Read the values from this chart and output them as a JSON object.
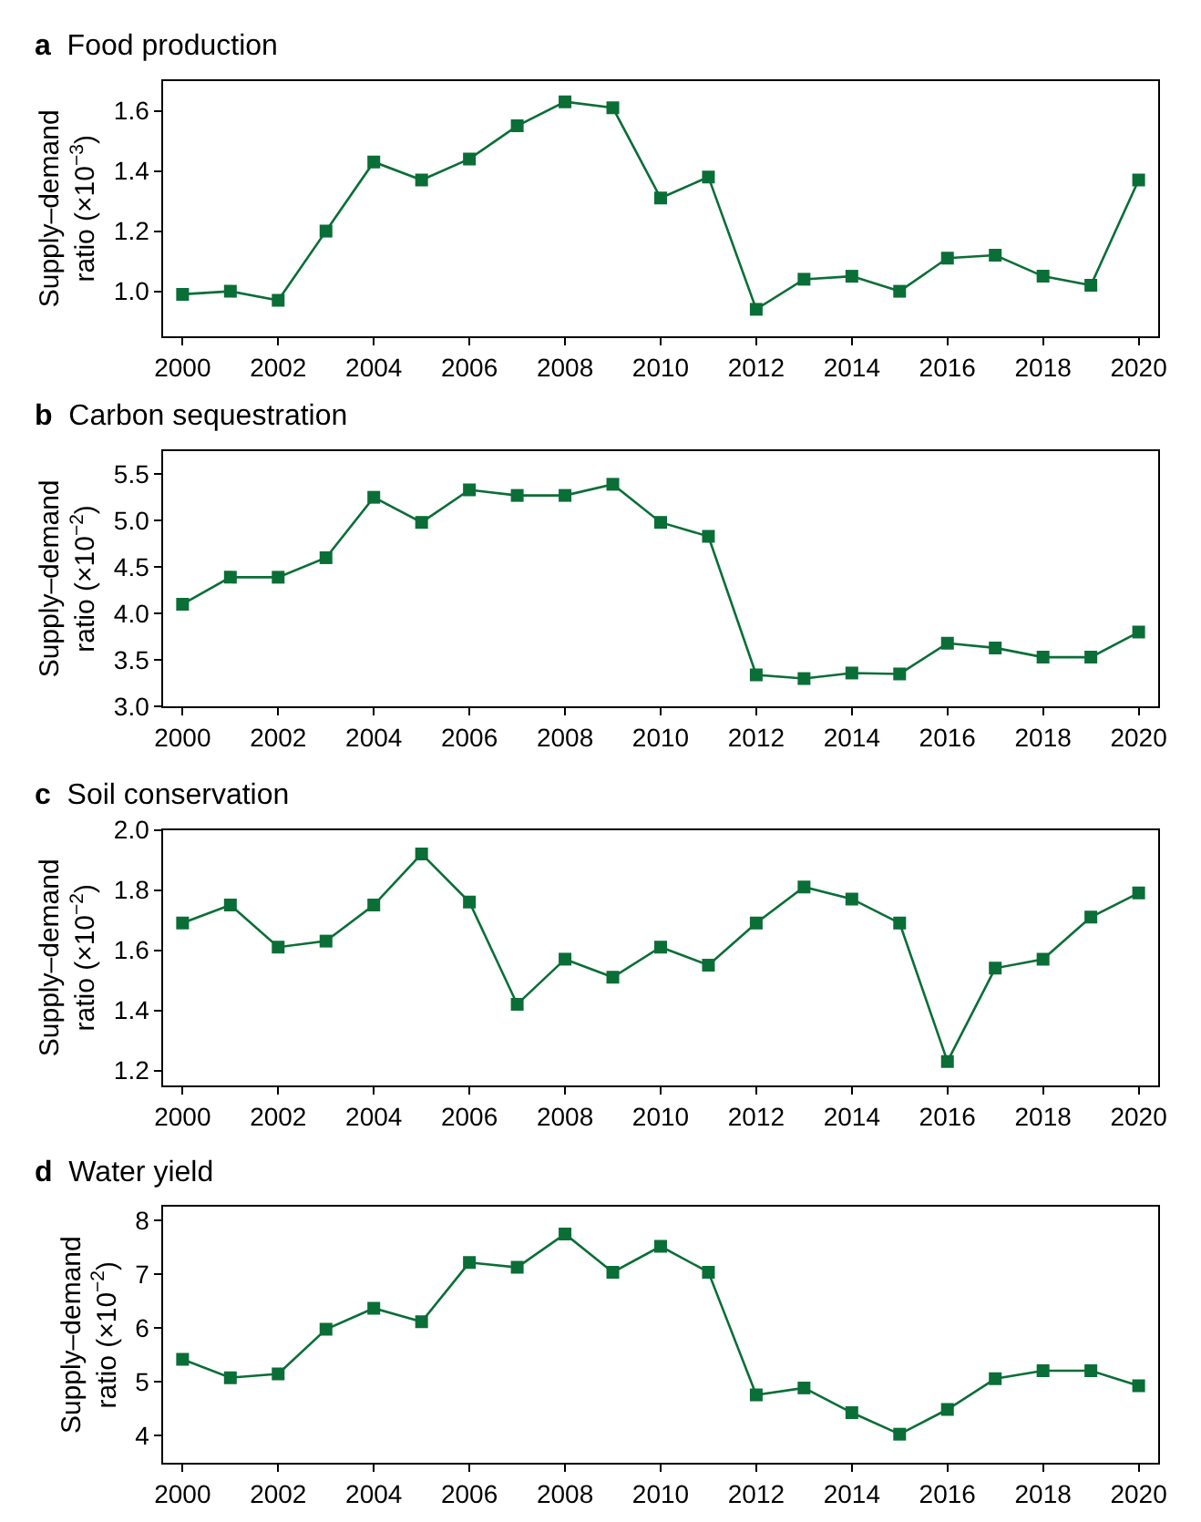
{
  "chart_data": [
    {
      "type": "line",
      "title": "a Food production",
      "ylabel": "Supply–demand\nratio (×10$^{−3}$)",
      "x": [
        2000,
        2001,
        2002,
        2003,
        2004,
        2005,
        2006,
        2007,
        2008,
        2009,
        2010,
        2011,
        2012,
        2013,
        2014,
        2015,
        2016,
        2017,
        2018,
        2019,
        2020
      ],
      "series": [
        {
          "color": "#0a6e37",
          "values": [
            0.99,
            1.0,
            0.97,
            1.2,
            1.43,
            1.37,
            1.44,
            1.55,
            1.63,
            1.61,
            1.31,
            1.38,
            0.94,
            1.04,
            1.05,
            1.0,
            1.11,
            1.12,
            1.05,
            1.02,
            1.37
          ]
        }
      ],
      "xlim": [
        1999.6,
        2020.4
      ],
      "xticks": [
        2000,
        2002,
        2004,
        2006,
        2008,
        2010,
        2012,
        2014,
        2016,
        2018,
        2020
      ],
      "ylim": [
        0.85,
        1.7
      ],
      "yticks": [
        {
          "value": 1.0,
          "label": "1.0"
        },
        1.2,
        1.4,
        1.6
      ],
      "marker": "square",
      "line_style": "solid"
    },
    {
      "type": "line",
      "title": "b Carbon sequestration",
      "ylabel": "Supply–demand\nratio (×10$^{−2}$)",
      "x": [
        2000,
        2001,
        2002,
        2003,
        2004,
        2005,
        2006,
        2007,
        2008,
        2009,
        2010,
        2011,
        2012,
        2013,
        2014,
        2015,
        2016,
        2017,
        2018,
        2019,
        2020
      ],
      "series": [
        {
          "color": "#0a6e37",
          "values": [
            4.1,
            4.39,
            4.39,
            4.6,
            5.25,
            4.98,
            5.33,
            5.27,
            5.27,
            5.39,
            4.98,
            4.83,
            3.34,
            3.3,
            3.36,
            3.35,
            3.68,
            3.63,
            3.53,
            3.53,
            3.8
          ]
        }
      ],
      "xlim": [
        1999.6,
        2020.4
      ],
      "xticks": [
        2000,
        2002,
        2004,
        2006,
        2008,
        2010,
        2012,
        2014,
        2016,
        2018,
        2020
      ],
      "ylim": [
        3.0,
        5.75
      ],
      "yticks": [
        {
          "value": 3.0,
          "label": "3.0"
        },
        3.5,
        {
          "value": 4.0,
          "label": "4.0"
        },
        4.5,
        {
          "value": 5.0,
          "label": "5.0"
        },
        5.5
      ],
      "marker": "square",
      "line_style": "solid"
    },
    {
      "type": "line",
      "title": "c Soil conservation",
      "ylabel": "Supply–demand\nratio (×10$^{−2}$)",
      "x": [
        2000,
        2001,
        2002,
        2003,
        2004,
        2005,
        2006,
        2007,
        2008,
        2009,
        2010,
        2011,
        2012,
        2013,
        2014,
        2015,
        2016,
        2017,
        2018,
        2019,
        2020
      ],
      "series": [
        {
          "color": "#0a6e37",
          "values": [
            1.69,
            1.75,
            1.61,
            1.63,
            1.75,
            1.92,
            1.76,
            1.42,
            1.57,
            1.51,
            1.61,
            1.55,
            1.69,
            1.81,
            1.77,
            1.69,
            1.23,
            1.54,
            1.57,
            1.71,
            1.79
          ]
        }
      ],
      "xlim": [
        1999.6,
        2020.4
      ],
      "xticks": [
        2000,
        2002,
        2004,
        2006,
        2008,
        2010,
        2012,
        2014,
        2016,
        2018,
        2020
      ],
      "ylim": [
        1.15,
        2.0
      ],
      "yticks": [
        1.2,
        1.4,
        1.6,
        1.8,
        {
          "value": 2.0,
          "label": "2.0"
        }
      ],
      "marker": "square",
      "line_style": "solid"
    },
    {
      "type": "line",
      "title": "d Water yield",
      "ylabel": "Supply–demand\nratio (×10$^{−2}$)",
      "x": [
        2000,
        2001,
        2002,
        2003,
        2004,
        2005,
        2006,
        2007,
        2008,
        2009,
        2010,
        2011,
        2012,
        2013,
        2014,
        2015,
        2016,
        2017,
        2018,
        2019,
        2020
      ],
      "series": [
        {
          "color": "#0a6e37",
          "values": [
            5.42,
            5.08,
            5.15,
            5.98,
            6.37,
            6.12,
            7.22,
            7.13,
            7.75,
            7.04,
            7.52,
            7.04,
            4.76,
            4.89,
            4.43,
            4.03,
            4.49,
            5.06,
            5.21,
            5.21,
            4.93
          ]
        }
      ],
      "xlim": [
        1999.6,
        2020.4
      ],
      "xticks": [
        2000,
        2002,
        2004,
        2006,
        2008,
        2010,
        2012,
        2014,
        2016,
        2018,
        2020
      ],
      "ylim": [
        3.5,
        8.25
      ],
      "yticks": [
        4,
        5,
        6,
        7,
        8
      ],
      "marker": "square",
      "line_style": "solid"
    }
  ]
}
